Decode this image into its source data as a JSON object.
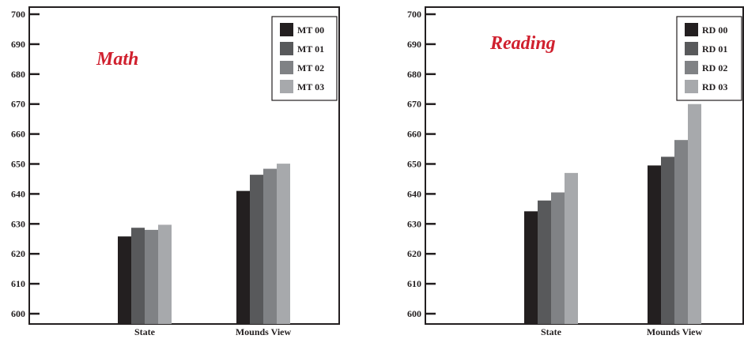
{
  "chart_data": [
    {
      "type": "bar",
      "title": "Math",
      "title_color": "#d0202e",
      "categories": [
        "State",
        "Mounds View"
      ],
      "ylim": [
        600,
        700
      ],
      "yticks": [
        "700",
        "690",
        "680",
        "670",
        "660",
        "650",
        "640",
        "630",
        "620",
        "610",
        "600"
      ],
      "grid": false,
      "legend_position": "top-right",
      "series": [
        {
          "name": "MT 00",
          "color": "#231f20",
          "values": [
            625.8,
            641.0
          ]
        },
        {
          "name": "MT 01",
          "color": "#58595b",
          "values": [
            628.7,
            646.4
          ]
        },
        {
          "name": "MT 02",
          "color": "#808285",
          "values": [
            628.0,
            648.4
          ]
        },
        {
          "name": "MT 03",
          "color": "#a7a9ac",
          "values": [
            629.7,
            650.1
          ]
        }
      ]
    },
    {
      "type": "bar",
      "title": "Reading",
      "title_color": "#d0202e",
      "categories": [
        "State",
        "Mounds View"
      ],
      "ylim": [
        600,
        700
      ],
      "yticks": [
        "700",
        "690",
        "680",
        "670",
        "660",
        "650",
        "640",
        "630",
        "620",
        "610",
        "600"
      ],
      "grid": false,
      "legend_position": "top-right",
      "series": [
        {
          "name": "RD 00",
          "color": "#231f20",
          "values": [
            634.2,
            649.5
          ]
        },
        {
          "name": "RD 01",
          "color": "#58595b",
          "values": [
            637.8,
            652.4
          ]
        },
        {
          "name": "RD 02",
          "color": "#808285",
          "values": [
            640.5,
            658.0
          ]
        },
        {
          "name": "RD 03",
          "color": "#a7a9ac",
          "values": [
            647.0,
            670.0
          ]
        }
      ]
    }
  ]
}
